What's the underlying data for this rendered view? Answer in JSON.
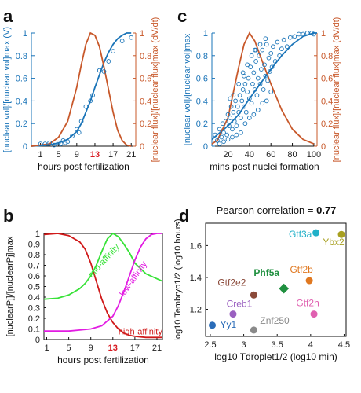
{
  "colors": {
    "blue": "#1a74b8",
    "orange": "#c8582a",
    "red": "#d71920",
    "green": "#38e238",
    "magenta": "#e21ce2",
    "darkred": "#d01a1a"
  },
  "chart_data": [
    {
      "panel": "a",
      "type": "line",
      "xlabel_parts": [
        "hours post fertilization"
      ],
      "ylabel_left": "[nuclear vol]/[nuclear vol]max (V)",
      "ylabel_right": "[nuclear flux]/[nuclear flux]max (dV/dt)",
      "xlim": [
        -1,
        22
      ],
      "ylim": [
        0,
        1
      ],
      "xticks": [
        "1",
        "5",
        "9",
        "13",
        "17",
        "21"
      ],
      "xtick_values": [
        1,
        5,
        9,
        13,
        17,
        21
      ],
      "highlight_tick": "13",
      "yticks_left": [
        "0",
        "0.2",
        "0.4",
        "0.6",
        "0.8",
        "1"
      ],
      "yticks_right": [
        "0",
        "0.2",
        "0.4",
        "0.6",
        "0.8",
        "1"
      ],
      "series": [
        {
          "style": "curve",
          "color": "blue",
          "axis": "left",
          "x": [
            -1,
            3,
            5,
            7,
            9,
            10,
            11,
            12,
            13,
            14,
            15,
            16,
            17,
            18,
            19,
            20,
            21
          ],
          "y": [
            0,
            0.01,
            0.03,
            0.06,
            0.13,
            0.2,
            0.3,
            0.4,
            0.52,
            0.63,
            0.74,
            0.83,
            0.9,
            0.95,
            0.98,
            1.0,
            1.0
          ]
        },
        {
          "style": "curve",
          "color": "orange",
          "axis": "right",
          "x": [
            -1,
            3,
            5,
            7,
            9,
            10,
            11,
            12,
            13,
            14,
            15,
            16,
            17,
            18,
            19,
            20,
            21
          ],
          "y": [
            0,
            0.02,
            0.08,
            0.22,
            0.52,
            0.72,
            0.9,
            1.0,
            0.98,
            0.88,
            0.7,
            0.5,
            0.3,
            0.14,
            0.05,
            0.01,
            0
          ]
        },
        {
          "style": "points",
          "color": "blue",
          "axis": "left",
          "x": [
            1,
            2,
            3,
            4,
            5,
            5.5,
            6,
            6.5,
            7,
            8,
            9,
            9.5,
            10,
            11,
            12,
            12.5,
            14,
            15,
            16,
            17,
            19,
            21
          ],
          "y": [
            0.02,
            0.02,
            0.03,
            0.01,
            0.03,
            0.02,
            0.05,
            0.03,
            0.04,
            0.09,
            0.15,
            0.12,
            0.22,
            0.35,
            0.4,
            0.45,
            0.67,
            0.66,
            0.75,
            0.84,
            0.93,
            0.96
          ]
        }
      ]
    },
    {
      "panel": "c",
      "type": "scatter",
      "xlabel_parts": [
        "mins post nuclei formation"
      ],
      "ylabel_left": "[nuclear vol]/[nuclear vol]max",
      "ylabel_right": "[nuclear flux]/[nuclear flux]max (dV/dt)",
      "xlim": [
        5,
        103
      ],
      "ylim": [
        0,
        1
      ],
      "xticks": [
        "20",
        "40",
        "60",
        "80",
        "100"
      ],
      "xtick_values": [
        20,
        40,
        60,
        80,
        100
      ],
      "yticks_left": [
        "0",
        "0.2",
        "0.4",
        "0.6",
        "0.8",
        "1"
      ],
      "yticks_right": [
        "0",
        "0.2",
        "0.4",
        "0.6",
        "0.8",
        "1"
      ],
      "series": [
        {
          "style": "curve",
          "color": "blue",
          "axis": "left",
          "x": [
            5,
            10,
            20,
            30,
            40,
            50,
            60,
            70,
            80,
            90,
            100,
            103
          ],
          "y": [
            0.06,
            0.1,
            0.18,
            0.28,
            0.42,
            0.55,
            0.68,
            0.8,
            0.9,
            0.97,
            1.0,
            1.0
          ]
        },
        {
          "style": "curve",
          "color": "orange",
          "axis": "right",
          "x": [
            5,
            10,
            20,
            30,
            35,
            40,
            45,
            50,
            60,
            70,
            80,
            90,
            100
          ],
          "y": [
            0.02,
            0.05,
            0.25,
            0.7,
            0.9,
            1.0,
            0.93,
            0.8,
            0.55,
            0.32,
            0.15,
            0.06,
            0.02
          ]
        },
        {
          "style": "points",
          "color": "blue",
          "axis": "left",
          "x": [
            8,
            10,
            12,
            14,
            15,
            16,
            18,
            19,
            20,
            21,
            22,
            23,
            24,
            25,
            26,
            27,
            28,
            29,
            30,
            31,
            32,
            33,
            34,
            35,
            36,
            37,
            38,
            39,
            40,
            41,
            42,
            43,
            44,
            45,
            46,
            47,
            48,
            49,
            50,
            51,
            52,
            53,
            54,
            55,
            56,
            57,
            58,
            59,
            60,
            61,
            62,
            64,
            66,
            68,
            70,
            72,
            75,
            78,
            82,
            86,
            90,
            94,
            98,
            100,
            12,
            16,
            20,
            24,
            28,
            32,
            36,
            40,
            44,
            48,
            52,
            56,
            60,
            25,
            30,
            35,
            45,
            50,
            55,
            22,
            34,
            38,
            42,
            46
          ],
          "y": [
            0.1,
            0.05,
            0.15,
            0.08,
            0.2,
            0.12,
            0.22,
            0.1,
            0.28,
            0.18,
            0.25,
            0.35,
            0.15,
            0.3,
            0.22,
            0.4,
            0.18,
            0.35,
            0.3,
            0.45,
            0.25,
            0.4,
            0.5,
            0.35,
            0.55,
            0.3,
            0.48,
            0.6,
            0.42,
            0.7,
            0.38,
            0.55,
            0.65,
            0.5,
            0.75,
            0.45,
            0.6,
            0.8,
            0.55,
            0.68,
            0.85,
            0.5,
            0.72,
            0.62,
            0.9,
            0.58,
            0.78,
            0.66,
            0.82,
            0.7,
            0.88,
            0.75,
            0.92,
            0.8,
            0.86,
            0.94,
            0.88,
            0.96,
            0.97,
            0.99,
            0.99,
            1.0,
            1.0,
            0.99,
            0.02,
            0.04,
            0.06,
            0.08,
            0.1,
            0.12,
            0.2,
            0.25,
            0.28,
            0.32,
            0.38,
            0.4,
            0.48,
            0.45,
            0.55,
            0.62,
            0.85,
            0.9,
            0.95,
            0.42,
            0.65,
            0.72,
            0.8,
            0.85
          ]
        }
      ]
    },
    {
      "panel": "b",
      "type": "line",
      "xlabel_parts": [
        "hours post fertilization"
      ],
      "ylabel": "[nuclearPj]/[nuclearPj]max",
      "xlim": [
        0.5,
        22
      ],
      "ylim": [
        0,
        1
      ],
      "xticks": [
        "1",
        "5",
        "9",
        "13",
        "17",
        "21"
      ],
      "xtick_values": [
        1,
        5,
        9,
        13,
        17,
        21
      ],
      "highlight_tick": "13",
      "yticks": [
        "0",
        "0.1",
        "0.2",
        "0.3",
        "0.4",
        "0.5",
        "0.6",
        "0.7",
        "0.8",
        "0.9",
        "1"
      ],
      "series": [
        {
          "name": "high-affinity",
          "color": "darkred",
          "x": [
            0.5,
            3,
            5,
            7,
            8,
            9,
            10,
            11,
            12,
            13,
            14,
            15,
            16,
            17,
            19,
            22
          ],
          "y": [
            0.99,
            1.0,
            0.98,
            0.92,
            0.85,
            0.72,
            0.55,
            0.38,
            0.25,
            0.16,
            0.1,
            0.06,
            0.04,
            0.03,
            0.02,
            0.02
          ]
        },
        {
          "name": "mid-affinity",
          "color": "green",
          "x": [
            0.5,
            3,
            5,
            7,
            8,
            9,
            10,
            11,
            12,
            13,
            14,
            15,
            16,
            17,
            19,
            22
          ],
          "y": [
            0.38,
            0.39,
            0.42,
            0.48,
            0.53,
            0.6,
            0.7,
            0.83,
            0.95,
            1.0,
            0.97,
            0.9,
            0.82,
            0.72,
            0.62,
            0.55
          ]
        },
        {
          "name": "low-affinity",
          "color": "magenta",
          "x": [
            0.5,
            3,
            5,
            7,
            9,
            11,
            13,
            14,
            15,
            16,
            17,
            18,
            19,
            20,
            21,
            22
          ],
          "y": [
            0.08,
            0.08,
            0.08,
            0.09,
            0.1,
            0.13,
            0.22,
            0.32,
            0.45,
            0.6,
            0.75,
            0.87,
            0.95,
            0.99,
            1.0,
            1.0
          ]
        }
      ]
    },
    {
      "panel": "d",
      "type": "scatter",
      "title": "Pearson correlation = ",
      "title_value": "0.77",
      "xlabel": "log10 Tdroplet1/2 (log10 min)",
      "ylabel": "log10 Tembryo1/2 (log10 hours)",
      "xlim": [
        2.43,
        4.53
      ],
      "ylim": [
        1.03,
        1.74
      ],
      "xticks": [
        "2.5",
        "3",
        "3.5",
        "4",
        "4.5"
      ],
      "xtick_values": [
        2.5,
        3,
        3.5,
        4,
        4.5
      ],
      "yticks": [
        "1.2",
        "1.4",
        "1.6"
      ],
      "ytick_values": [
        1.2,
        1.4,
        1.6
      ],
      "points": [
        {
          "label": "Gtf3a",
          "x": 4.08,
          "y": 1.68,
          "color": "#20b0c8",
          "marker": "circle"
        },
        {
          "label": "Ybx2",
          "x": 4.46,
          "y": 1.67,
          "color": "#a8a020",
          "marker": "circle"
        },
        {
          "label": "Gtf2b",
          "x": 3.98,
          "y": 1.38,
          "color": "#e07820",
          "marker": "circle"
        },
        {
          "label": "Phf5a",
          "x": 3.6,
          "y": 1.33,
          "color": "#209040",
          "marker": "diamond",
          "bold": true
        },
        {
          "label": "Gtf2e2",
          "x": 3.15,
          "y": 1.29,
          "color": "#8b4a3a",
          "marker": "circle"
        },
        {
          "label": "Creb1",
          "x": 2.84,
          "y": 1.17,
          "color": "#9a60c0",
          "marker": "circle"
        },
        {
          "label": "Gtf2h",
          "x": 4.05,
          "y": 1.17,
          "color": "#e060b0",
          "marker": "circle"
        },
        {
          "label": "Yy1",
          "x": 2.53,
          "y": 1.1,
          "color": "#2a6cb8",
          "marker": "circle"
        },
        {
          "label": "Znf250",
          "x": 3.15,
          "y": 1.07,
          "color": "#8a8a8a",
          "marker": "circle"
        }
      ]
    }
  ]
}
